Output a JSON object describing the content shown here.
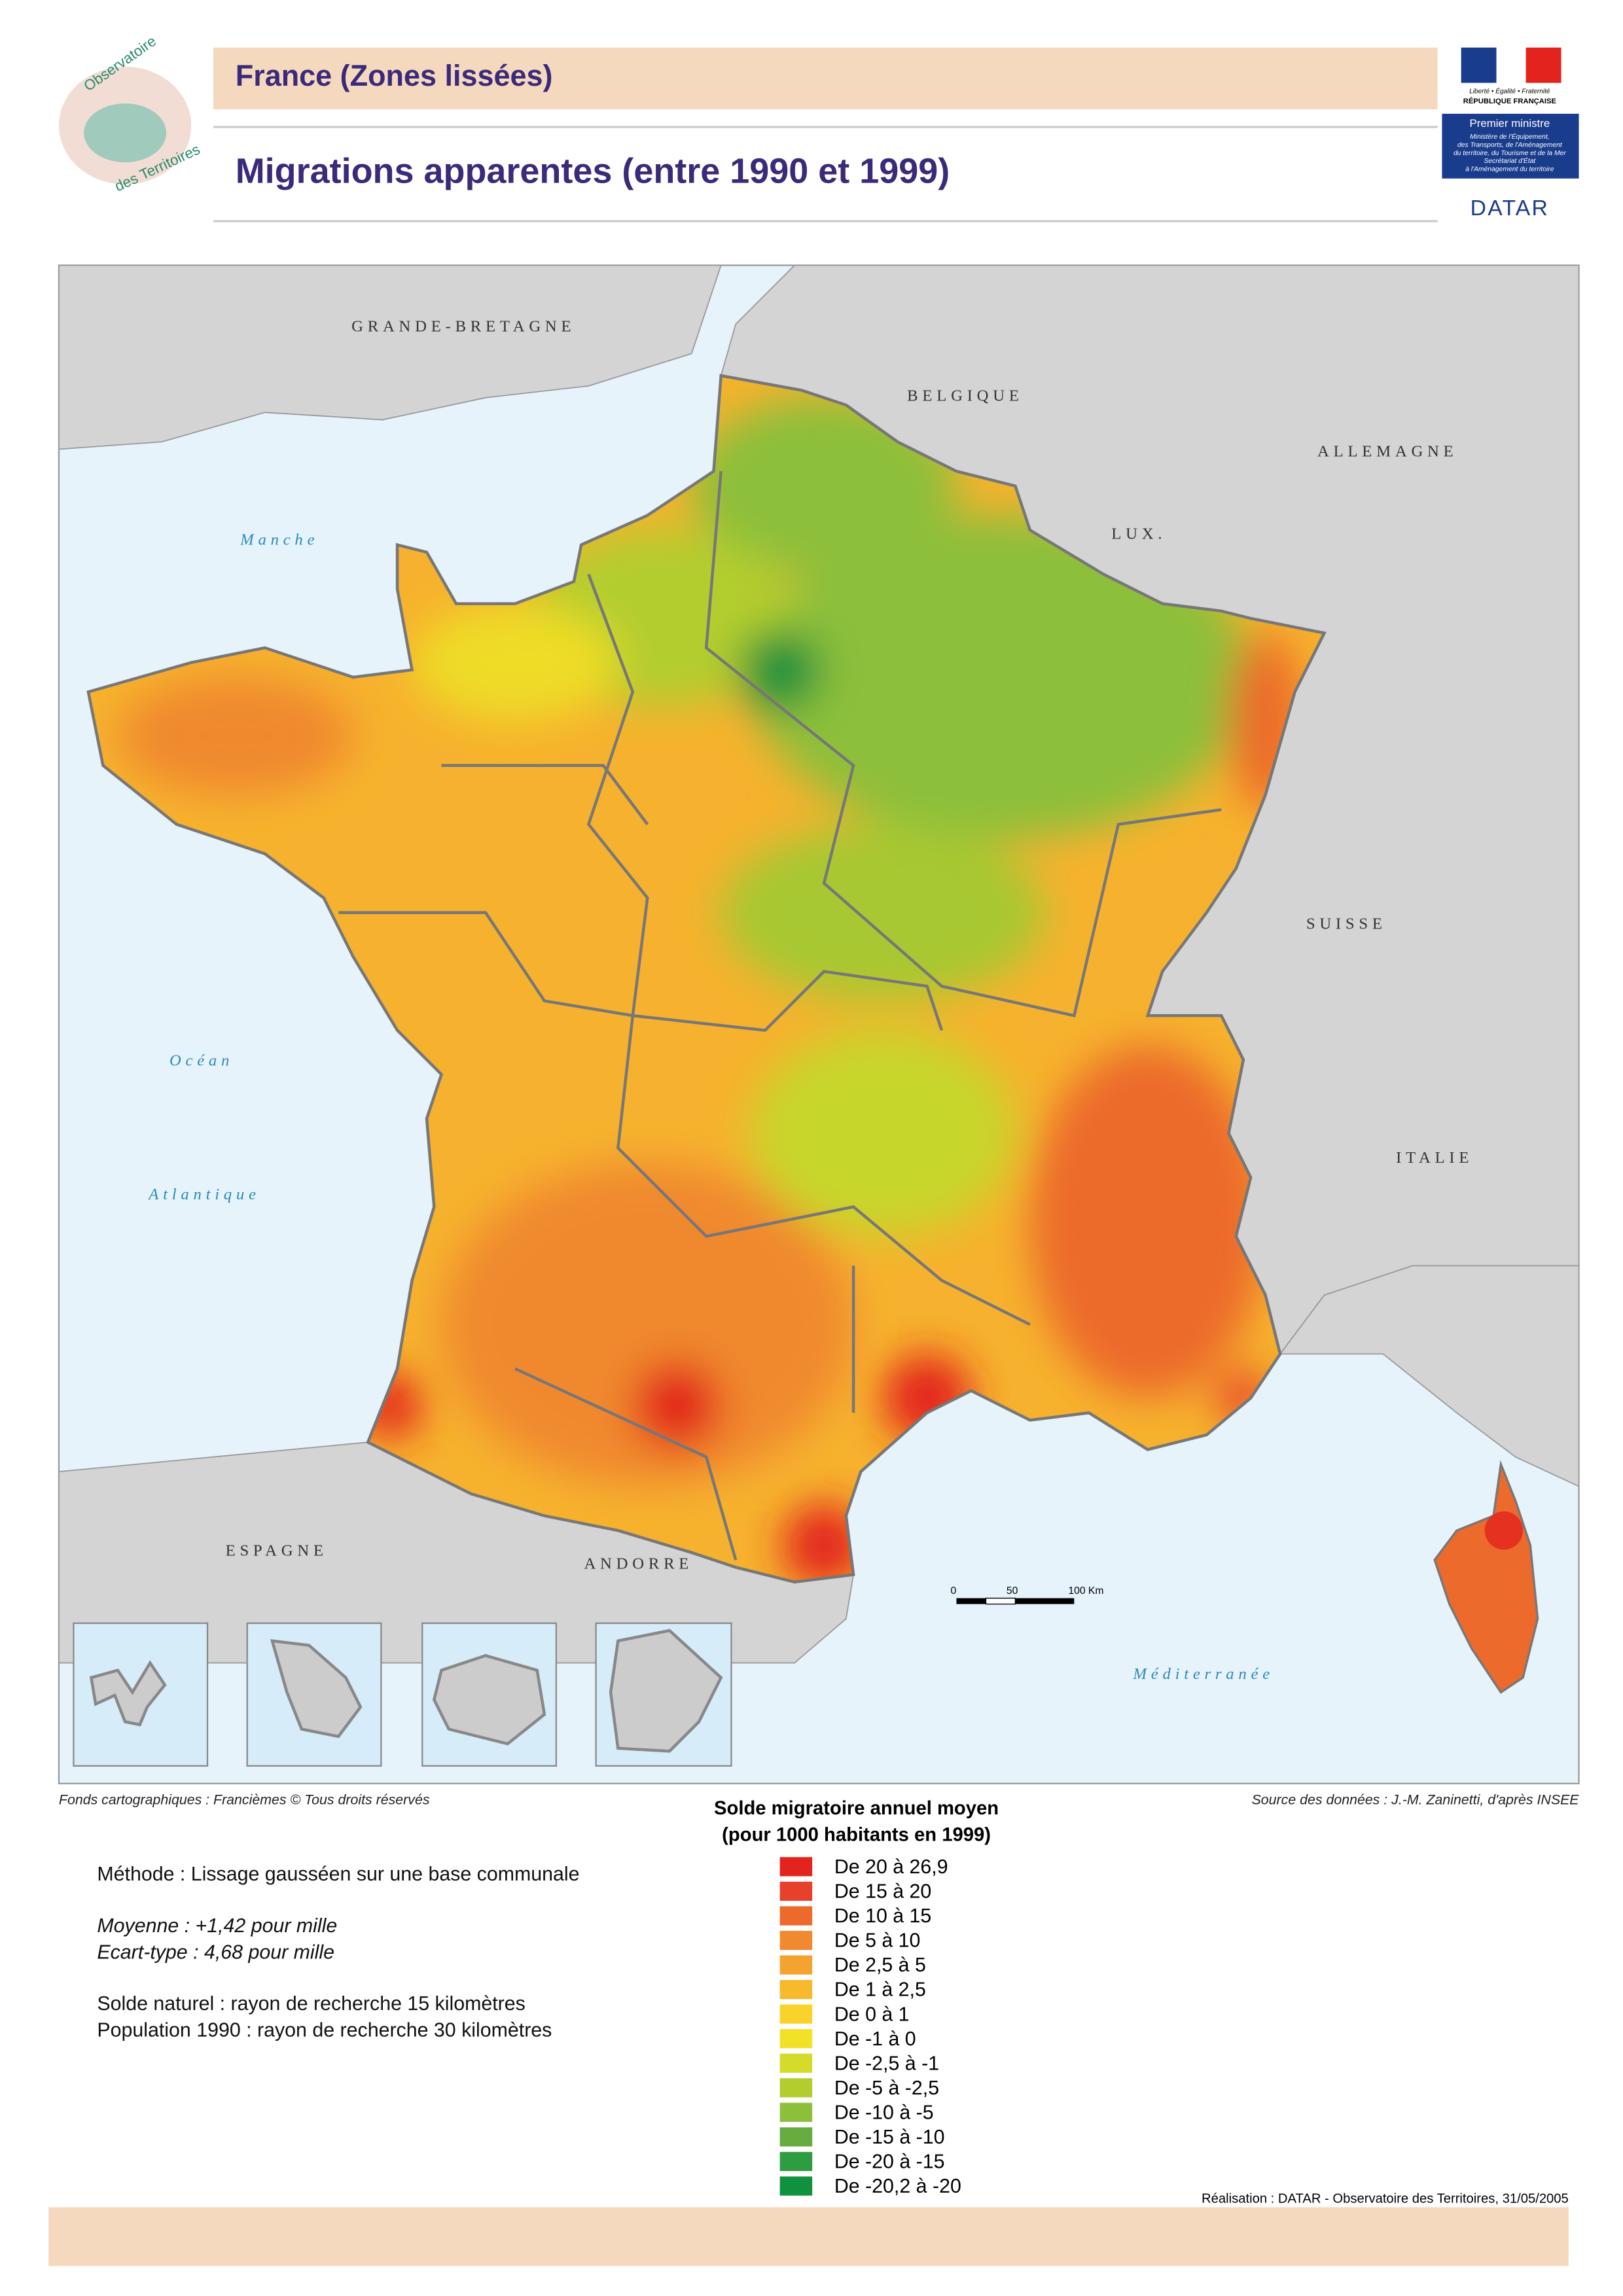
{
  "header": {
    "title": "France (Zones lissées)",
    "subtitle": "Migrations apparentes (entre 1990 et 1999)",
    "logo": [
      "Observatoire",
      "des Territoires"
    ],
    "republic": {
      "motto": "Liberté • Égalité • Fraternité",
      "name": "RÉPUBLIQUE FRANÇAISE",
      "premier": "Premier ministre",
      "ministry": [
        "Ministère de l'Équipement,",
        "des Transports, de l'Aménagement",
        "du territoire, du Tourisme et de la Mer",
        "Secrétariat d'État",
        "à l'Aménagement du territoire"
      ],
      "datar": "DATAR"
    }
  },
  "map": {
    "countries": [
      "GRANDE-BRETAGNE",
      "BELGIQUE",
      "ALLEMAGNE",
      "LUX.",
      "SUISSE",
      "ITALIE",
      "ESPAGNE",
      "ANDORRE"
    ],
    "seas": [
      "Manche",
      "Océan",
      "Atlantique",
      "Méditerranée"
    ],
    "scale": [
      "0",
      "50",
      "100 Km"
    ]
  },
  "credits": {
    "basemap": "Fonds cartographiques : Francièmes © Tous droits réservés",
    "source": "Source des données : J.-M. Zaninetti, d'après INSEE",
    "realisation": "Réalisation : DATAR - Observatoire des Territoires, 31/05/2005"
  },
  "legend": {
    "title": [
      "Solde migratoire annuel moyen",
      "(pour 1000 habitants en 1999)"
    ],
    "entries": [
      {
        "label": "De 20 à 26,9",
        "color": "#e2231e"
      },
      {
        "label": "De 15 à 20",
        "color": "#e6412a"
      },
      {
        "label": "De 10 à 15",
        "color": "#ec6a2c"
      },
      {
        "label": "De 5 à 10",
        "color": "#f0892f"
      },
      {
        "label": "De 2,5 à 5",
        "color": "#f4a331"
      },
      {
        "label": "De 1 à 2,5",
        "color": "#f7ba2c"
      },
      {
        "label": "De 0 à 1",
        "color": "#f9d32a"
      },
      {
        "label": "De -1 à 0",
        "color": "#f1e227"
      },
      {
        "label": "De -2,5 à -1",
        "color": "#d4db28"
      },
      {
        "label": "De -5 à -2,5",
        "color": "#b3cd2e"
      },
      {
        "label": "De -10 à -5",
        "color": "#8cbf3a"
      },
      {
        "label": "De -15 à -10",
        "color": "#67ac3e"
      },
      {
        "label": "De -20 à -15",
        "color": "#2e9c40"
      },
      {
        "label": "De -20,2 à -20",
        "color": "#10913e"
      }
    ]
  },
  "notes": [
    "Méthode : Lissage gausséen sur une base communale",
    "Moyenne : +1,42 pour mille",
    "Ecart-type : 4,68 pour mille",
    "Solde naturel : rayon de recherche 15 kilomètres",
    "Population 1990 : rayon de recherche 30 kilomètres"
  ]
}
